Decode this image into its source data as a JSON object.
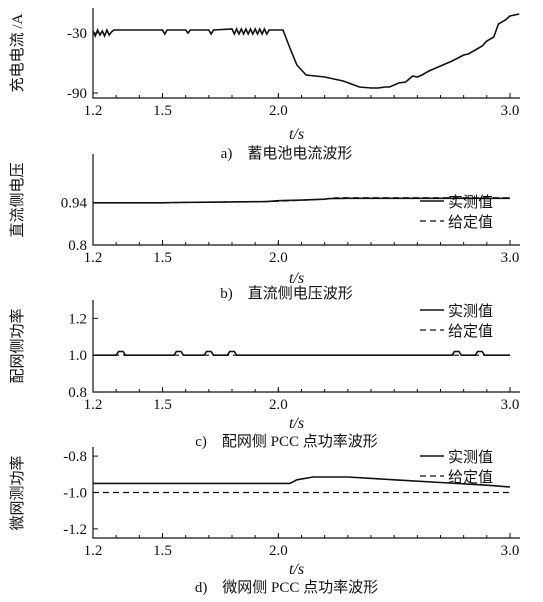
{
  "chart_data": [
    {
      "type": "line",
      "ylabel": "充电电流 /A",
      "xlabel": "t/s",
      "caption": "a)　蓄电池电流波形",
      "xlim": [
        1.2,
        3.0
      ],
      "ylim": [
        -95,
        -5
      ],
      "xticks": [
        "1.2",
        "1.5",
        "2.0",
        "3.0"
      ],
      "yticks": [
        "-30",
        "-90"
      ],
      "series": [
        {
          "style": "solid",
          "points": [
            [
              1.2,
              -28
            ],
            [
              1.21,
              -33
            ],
            [
              1.22,
              -27
            ],
            [
              1.23,
              -32
            ],
            [
              1.24,
              -28
            ],
            [
              1.25,
              -33
            ],
            [
              1.26,
              -27
            ],
            [
              1.27,
              -32
            ],
            [
              1.28,
              -29
            ],
            [
              1.29,
              -27
            ],
            [
              1.35,
              -27
            ],
            [
              1.5,
              -27
            ],
            [
              1.51,
              -31
            ],
            [
              1.52,
              -27
            ],
            [
              1.55,
              -27
            ],
            [
              1.6,
              -27
            ],
            [
              1.61,
              -30
            ],
            [
              1.62,
              -27
            ],
            [
              1.7,
              -27
            ],
            [
              1.71,
              -31
            ],
            [
              1.72,
              -27
            ],
            [
              1.8,
              -26
            ],
            [
              1.81,
              -31
            ],
            [
              1.82,
              -26
            ],
            [
              1.83,
              -31
            ],
            [
              1.84,
              -26
            ],
            [
              1.85,
              -31
            ],
            [
              1.86,
              -26
            ],
            [
              1.87,
              -31
            ],
            [
              1.88,
              -26
            ],
            [
              1.89,
              -31
            ],
            [
              1.9,
              -26
            ],
            [
              1.91,
              -31
            ],
            [
              1.92,
              -26
            ],
            [
              1.93,
              -31
            ],
            [
              1.94,
              -26
            ],
            [
              1.95,
              -31
            ],
            [
              1.96,
              -27
            ],
            [
              1.98,
              -27
            ],
            [
              2.0,
              -27
            ],
            [
              2.02,
              -27
            ],
            [
              2.05,
              -45
            ],
            [
              2.08,
              -62
            ],
            [
              2.12,
              -72
            ],
            [
              2.2,
              -74
            ],
            [
              2.28,
              -78
            ],
            [
              2.35,
              -84
            ],
            [
              2.4,
              -85
            ],
            [
              2.43,
              -85
            ],
            [
              2.46,
              -84
            ],
            [
              2.48,
              -84
            ],
            [
              2.52,
              -80
            ],
            [
              2.55,
              -79
            ],
            [
              2.58,
              -73
            ],
            [
              2.6,
              -74
            ],
            [
              2.62,
              -72
            ],
            [
              2.65,
              -68
            ],
            [
              2.7,
              -63
            ],
            [
              2.75,
              -58
            ],
            [
              2.8,
              -52
            ],
            [
              2.82,
              -51
            ],
            [
              2.85,
              -47
            ],
            [
              2.88,
              -43
            ],
            [
              2.9,
              -38
            ],
            [
              2.93,
              -34
            ],
            [
              2.95,
              -21
            ],
            [
              2.98,
              -17
            ],
            [
              3.0,
              -13
            ],
            [
              3.04,
              -11
            ]
          ]
        }
      ]
    },
    {
      "type": "line",
      "ylabel": "直流侧电压",
      "xlabel": "t/s",
      "caption": "b)　直流侧电压波形",
      "xlim": [
        1.2,
        3.0
      ],
      "ylim": [
        0.8,
        1.1
      ],
      "xticks": [
        "1.2",
        "1.5",
        "2.0",
        "3.0"
      ],
      "yticks": [
        "0.94",
        "0.8"
      ],
      "legend": [
        "实测值",
        "给定值"
      ],
      "series": [
        {
          "name": "实测值",
          "style": "solid",
          "points": [
            [
              1.2,
              0.939
            ],
            [
              1.5,
              0.939
            ],
            [
              1.55,
              0.94
            ],
            [
              1.7,
              0.941
            ],
            [
              1.95,
              0.943
            ],
            [
              2.0,
              0.946
            ],
            [
              2.1,
              0.948
            ],
            [
              2.2,
              0.951
            ],
            [
              2.22,
              0.953
            ],
            [
              2.3,
              0.954
            ],
            [
              3.0,
              0.954
            ]
          ]
        },
        {
          "name": "给定值",
          "style": "dashed",
          "points": [
            [
              1.2,
              0.939
            ],
            [
              1.5,
              0.939
            ],
            [
              2.0,
              0.944
            ],
            [
              2.2,
              0.951
            ],
            [
              2.25,
              0.956
            ],
            [
              3.0,
              0.956
            ]
          ]
        }
      ]
    },
    {
      "type": "line",
      "ylabel": "配网侧功率",
      "xlabel": "t/s",
      "caption": "c)　配网侧 PCC 点功率波形",
      "xlim": [
        1.2,
        3.0
      ],
      "ylim": [
        0.8,
        1.3
      ],
      "xticks": [
        "1.2",
        "1.5",
        "2.0",
        "3.0"
      ],
      "yticks": [
        "1.2",
        "1.0",
        "0.8"
      ],
      "legend": [
        "实测值",
        "给定值"
      ],
      "series": [
        {
          "name": "实测值",
          "style": "solid",
          "points": [
            [
              1.2,
              1.0
            ],
            [
              1.3,
              1.0
            ],
            [
              1.31,
              1.02
            ],
            [
              1.33,
              1.02
            ],
            [
              1.34,
              1.0
            ],
            [
              1.55,
              1.0
            ],
            [
              1.56,
              1.02
            ],
            [
              1.58,
              1.02
            ],
            [
              1.59,
              1.0
            ],
            [
              1.68,
              1.0
            ],
            [
              1.69,
              1.02
            ],
            [
              1.71,
              1.02
            ],
            [
              1.72,
              1.0
            ],
            [
              1.78,
              1.0
            ],
            [
              1.79,
              1.02
            ],
            [
              1.81,
              1.02
            ],
            [
              1.82,
              1.0
            ],
            [
              2.75,
              1.0
            ],
            [
              2.76,
              1.02
            ],
            [
              2.78,
              1.02
            ],
            [
              2.79,
              1.0
            ],
            [
              2.85,
              1.0
            ],
            [
              2.86,
              1.02
            ],
            [
              2.88,
              1.02
            ],
            [
              2.89,
              1.0
            ],
            [
              3.0,
              1.0
            ]
          ]
        },
        {
          "name": "给定值",
          "style": "dashed",
          "points": [
            [
              1.2,
              1.0
            ],
            [
              3.0,
              1.0
            ]
          ]
        }
      ]
    },
    {
      "type": "line",
      "ylabel": "微网测功率",
      "xlabel": "t/s",
      "caption": "d)　微网侧 PCC 点功率波形",
      "xlim": [
        1.2,
        3.0
      ],
      "ylim": [
        -1.25,
        -0.75
      ],
      "xticks": [
        "1.2",
        "1.5",
        "2.0",
        "3.0"
      ],
      "yticks": [
        "-0.8",
        "-1.0",
        "-1.2"
      ],
      "legend": [
        "实测值",
        "给定值"
      ],
      "series": [
        {
          "name": "实测值",
          "style": "solid",
          "points": [
            [
              1.2,
              -0.95
            ],
            [
              2.0,
              -0.95
            ],
            [
              2.05,
              -0.95
            ],
            [
              2.08,
              -0.93
            ],
            [
              2.15,
              -0.915
            ],
            [
              2.3,
              -0.915
            ],
            [
              2.5,
              -0.93
            ],
            [
              2.7,
              -0.945
            ],
            [
              2.9,
              -0.96
            ],
            [
              3.0,
              -0.97
            ]
          ]
        },
        {
          "name": "给定值",
          "style": "dashed",
          "points": [
            [
              1.2,
              -1.0
            ],
            [
              3.0,
              -1.0
            ]
          ]
        }
      ]
    }
  ]
}
